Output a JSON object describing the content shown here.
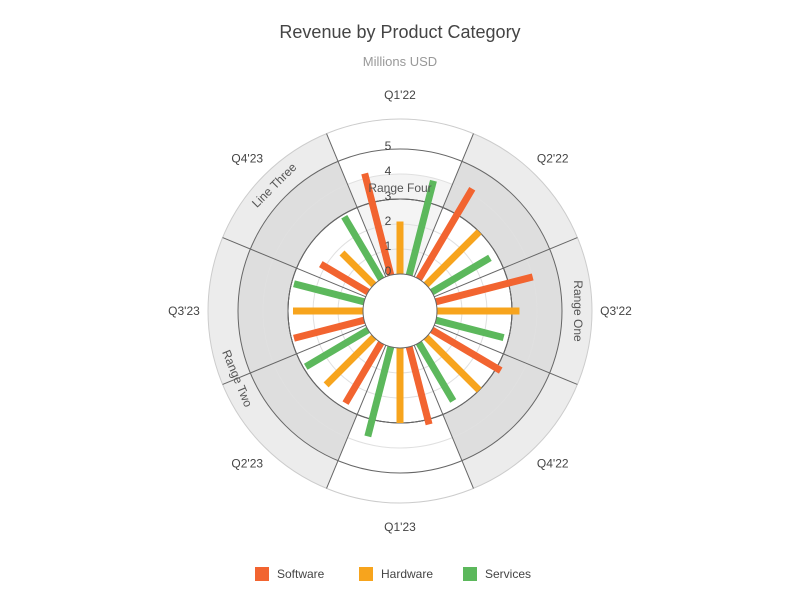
{
  "chart_data": {
    "type": "bar",
    "subtype": "polar-radial-column",
    "title": "Revenue by Product Category",
    "subtitle": "Millions USD",
    "categories": [
      "Q1'22",
      "Q2'22",
      "Q3'22",
      "Q4'22",
      "Q1'23",
      "Q2'23",
      "Q3'23",
      "Q4'23"
    ],
    "series": [
      {
        "name": "Software",
        "color": "#f26430",
        "values": [
          4.2,
          4.2,
          4.0,
          3.2,
          3.2,
          2.8,
          2.9,
          2.2
        ]
      },
      {
        "name": "Hardware",
        "color": "#f7a41d",
        "values": [
          2.1,
          3.0,
          3.3,
          3.0,
          3.0,
          2.7,
          2.8,
          1.8
        ]
      },
      {
        "name": "Services",
        "color": "#5cb85c",
        "values": [
          3.9,
          2.7,
          2.8,
          2.7,
          3.7,
          2.9,
          2.9,
          2.9
        ]
      }
    ],
    "rlim": [
      0,
      5
    ],
    "radial_ticks": [
      "0",
      "1",
      "2",
      "3",
      "4",
      "5"
    ],
    "bands": [
      {
        "label": "Range One",
        "from": 3,
        "to": 5,
        "start_category": 1,
        "end_category": 3
      },
      {
        "label": "Range Two",
        "from": 3,
        "to": 5,
        "start_category": 5,
        "end_category": 6
      },
      {
        "label": "Line Three",
        "from": 3,
        "to": 5,
        "start_category": 7,
        "end_category": 7
      },
      {
        "label": "Range Four",
        "from": 0,
        "to": 4,
        "start_category": 0,
        "end_category": 0
      }
    ],
    "legend": {
      "position": "bottom"
    },
    "grid": true
  }
}
